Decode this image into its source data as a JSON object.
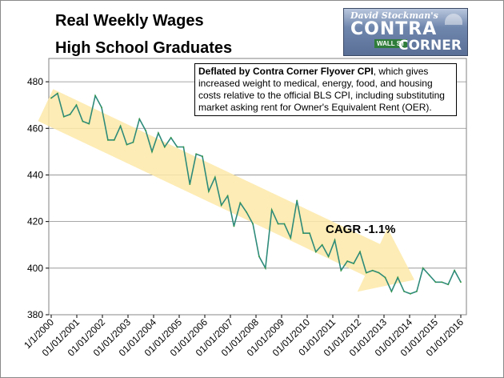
{
  "logo": {
    "author": "David Stockman's",
    "word1": "CONTRA",
    "word2": "CORNER",
    "sign": "WALL ST"
  },
  "note": {
    "bold": "Deflated by Contra Corner Flyover CPI",
    "rest": ", which gives increased weight to medical, energy, food, and housing costs relative to the official BLS CPI, including substituting market asking rent for Owner's Equivalent Rent (OER)."
  },
  "annotation": "CAGR -1.1%",
  "colors": {
    "line": "#2e8b7a",
    "marker": "#3a9a3a",
    "arrow": "#fde9a8",
    "grid": "#8a8a8a"
  },
  "chart_data": {
    "type": "line",
    "title": "Real Weekly Wages",
    "subtitle": "High School Graduates",
    "xlabel": "",
    "ylabel": "",
    "ylim": [
      380,
      490
    ],
    "yticks": [
      380,
      400,
      420,
      440,
      460,
      480
    ],
    "grid": "horizontal",
    "xtick_labels": [
      "1/1/2000",
      "01/01/2001",
      "01/01/2002",
      "01/01/2003",
      "01/01/2004",
      "01/01/2005",
      "01/01/2006",
      "01/01/2007",
      "01/01/2008",
      "01/01/2009",
      "01/01/2010",
      "01/01/2011",
      "01/01/2012",
      "01/01/2013",
      "01/01/2014",
      "01/01/2015",
      "01/01/2016"
    ],
    "series": [
      {
        "values": [
          473,
          475,
          465,
          466,
          470,
          463,
          462,
          474,
          469,
          455,
          455,
          461,
          453,
          454,
          464,
          459,
          450,
          458,
          452,
          456,
          452,
          452,
          436,
          449,
          448,
          433,
          439,
          427,
          431,
          418,
          428,
          424,
          419,
          405,
          400,
          425,
          419,
          419,
          413,
          429,
          415,
          415,
          407,
          410,
          405,
          412,
          399,
          403,
          402,
          407,
          398,
          399,
          398,
          396,
          390,
          396,
          390,
          389,
          390,
          400,
          397,
          394,
          394,
          393,
          399,
          394
        ]
      }
    ],
    "trend": {
      "start": 470,
      "end": 395
    }
  }
}
